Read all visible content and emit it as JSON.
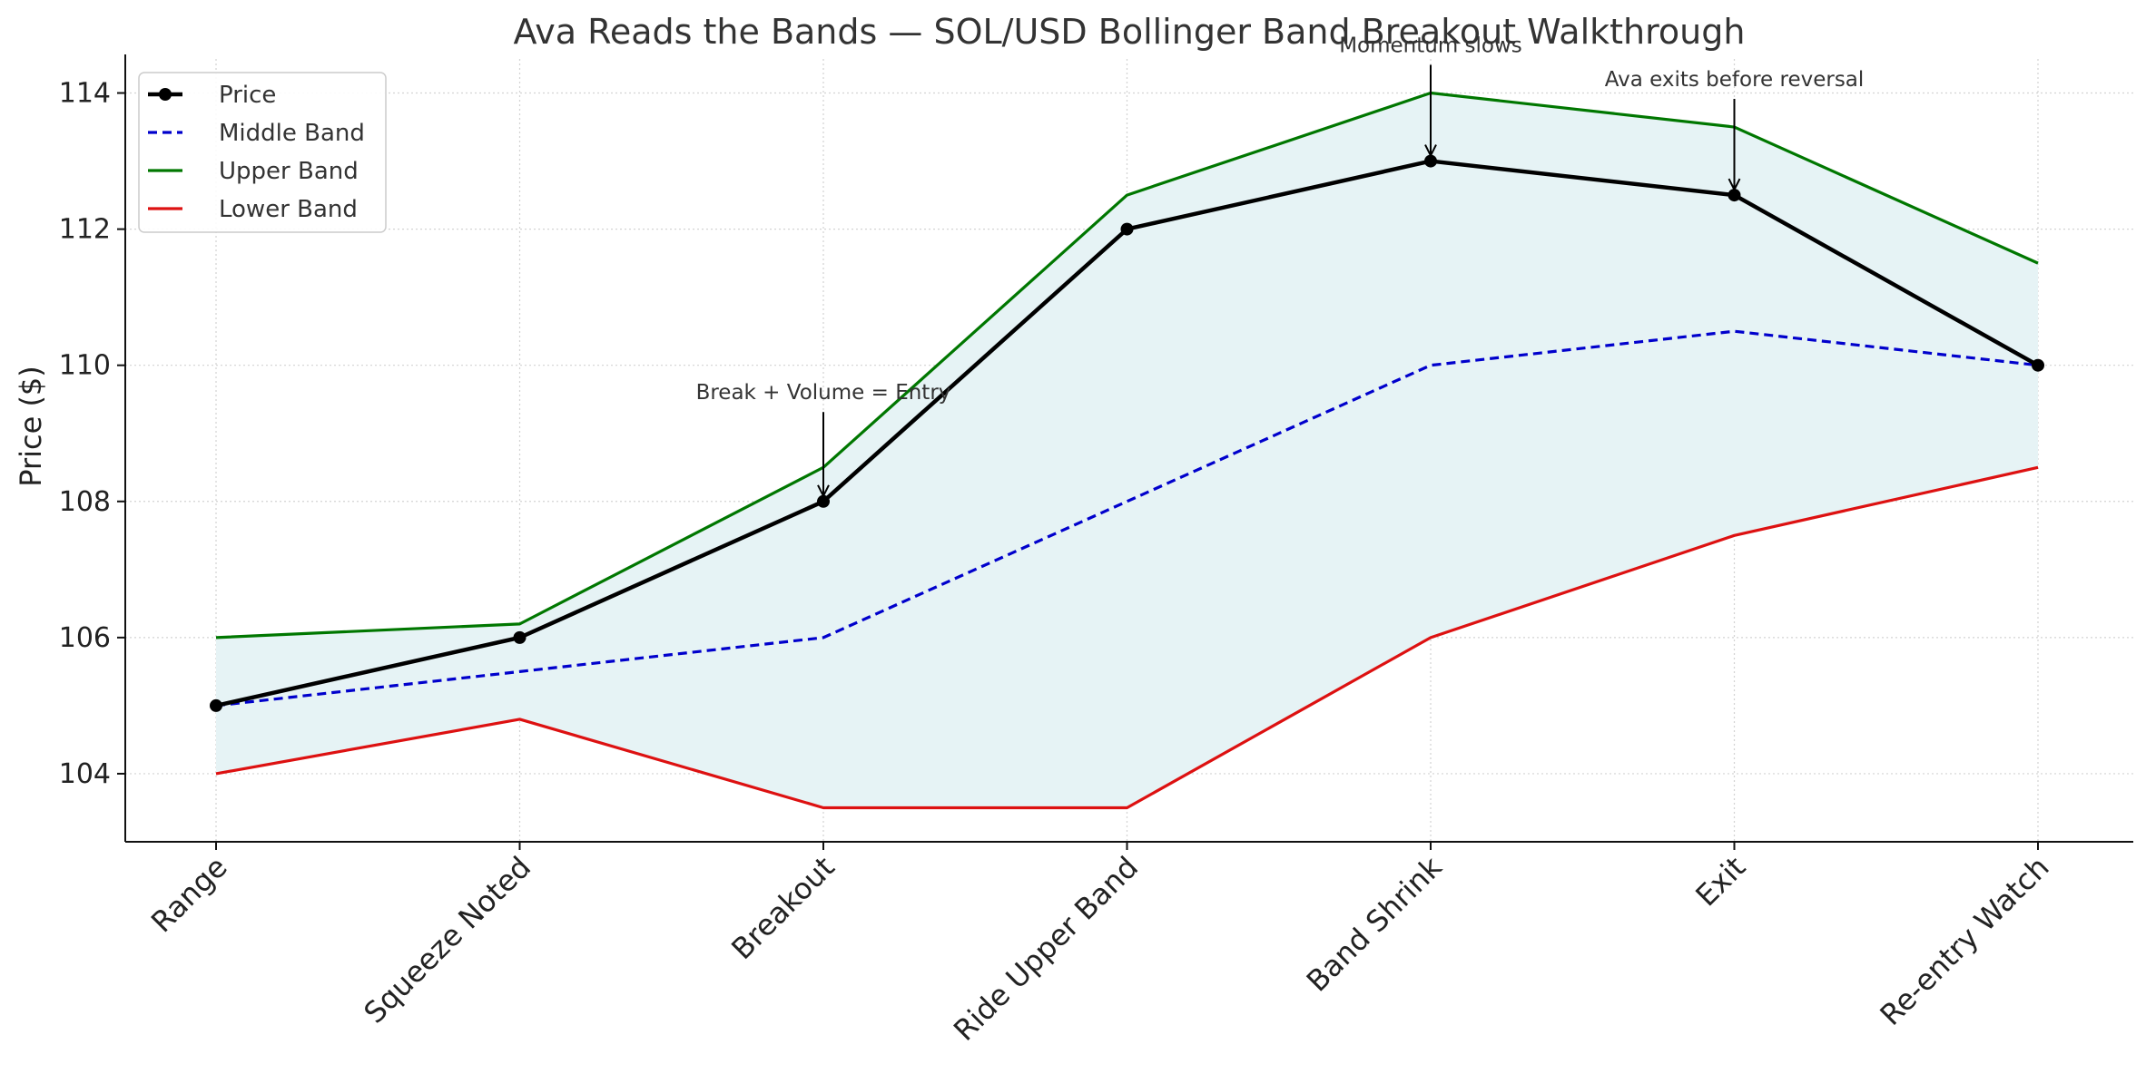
{
  "chart_data": {
    "type": "line",
    "title": "Ava Reads the Bands — SOL/USD Bollinger Band Breakout Walkthrough",
    "xlabel": "",
    "ylabel": "Price ($)",
    "categories": [
      "Range",
      "Squeeze Noted",
      "Breakout",
      "Ride Upper Band",
      "Band Shrink",
      "Exit",
      "Re-entry Watch"
    ],
    "ylim": [
      103,
      114.5
    ],
    "yticks": [
      104,
      106,
      108,
      110,
      112,
      114
    ],
    "grid": true,
    "legend_position": "top-left",
    "band_fill_color": "#e6f3f5",
    "series": [
      {
        "name": "Price",
        "values": [
          105,
          106,
          108,
          112,
          113,
          112.5,
          110
        ],
        "color": "#000000",
        "style": "solid",
        "marker": "circle"
      },
      {
        "name": "Middle Band",
        "values": [
          105,
          105.5,
          106,
          108,
          110,
          110.5,
          110
        ],
        "color": "#0000cc",
        "style": "dashed"
      },
      {
        "name": "Upper Band",
        "values": [
          106,
          106.2,
          108.5,
          112.5,
          114,
          113.5,
          111.5
        ],
        "color": "#007700",
        "style": "solid"
      },
      {
        "name": "Lower Band",
        "values": [
          104,
          104.8,
          103.5,
          103.5,
          106,
          107.5,
          108.5
        ],
        "color": "#dd1111",
        "style": "solid"
      }
    ],
    "annotations": [
      {
        "text": "Break + Volume = Entry",
        "category_index": 2,
        "value": 108,
        "text_value": 109.5
      },
      {
        "text": "Momentum slows",
        "category_index": 4,
        "value": 113,
        "text_value": 114.6
      },
      {
        "text": "Ava exits before reversal",
        "category_index": 5,
        "value": 112.5,
        "text_value": 114.1
      }
    ]
  }
}
